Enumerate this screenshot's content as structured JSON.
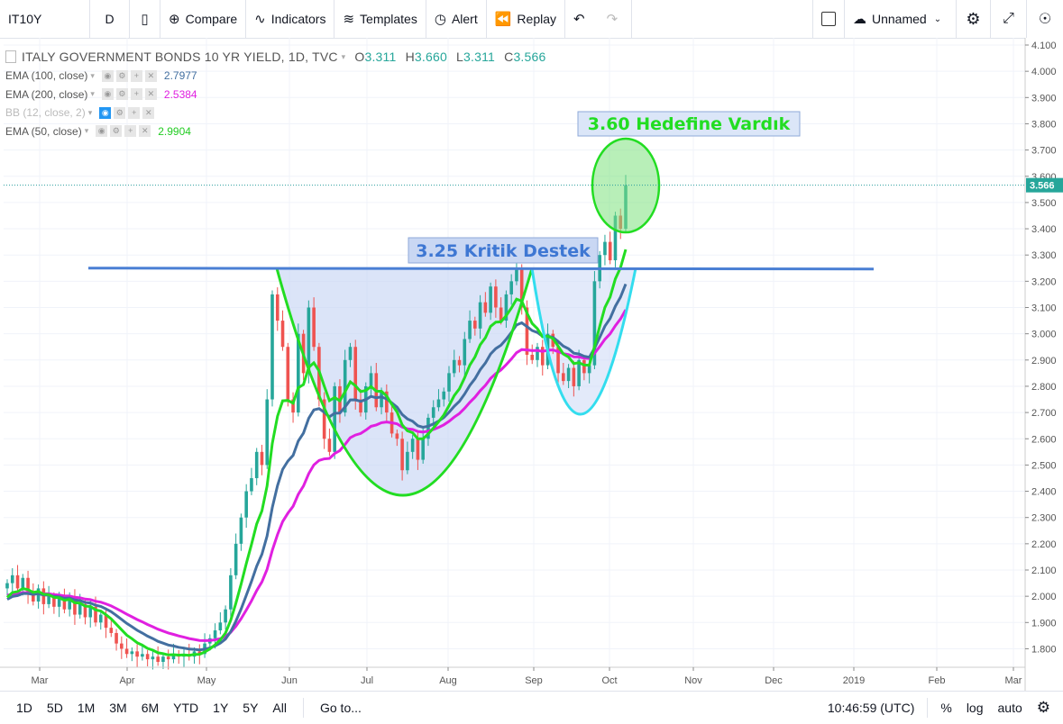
{
  "toolbar": {
    "symbol": "IT10Y",
    "interval": "D",
    "compare": "Compare",
    "indicators": "Indicators",
    "templates": "Templates",
    "alert": "Alert",
    "replay": "Replay",
    "layout_name": "Unnamed"
  },
  "legend": {
    "title": "ITALY GOVERNMENT BONDS 10 YR YIELD, 1D, TVC",
    "open_label": "O",
    "open": "3.311",
    "high_label": "H",
    "high": "3.660",
    "low_label": "L",
    "low": "3.311",
    "close_label": "C",
    "close": "3.566",
    "studies": [
      {
        "name": "EMA (100, close)",
        "value": "2.7977",
        "color": "#436fa0"
      },
      {
        "name": "EMA (200, close)",
        "value": "2.5384",
        "color": "#e020e0"
      },
      {
        "name": "BB (12, close, 2)",
        "value": "",
        "color": "#bbbbbb"
      },
      {
        "name": "EMA (50, close)",
        "value": "2.9904",
        "color": "#22cc22"
      }
    ]
  },
  "annotations": {
    "target": "3.60 Hedefine Vardık",
    "support": "3.25 Kritik Destek"
  },
  "colors": {
    "up": "#26a69a",
    "down": "#ef5350",
    "ema50": "#22dd22",
    "ema100": "#436fa0",
    "ema200": "#e020e0",
    "support": "#4a7fd4",
    "pattern_fill": "#c7d6f5",
    "price_line": "#2a9d9d",
    "price_label_bg": "#26a69a"
  },
  "price_axis": {
    "ticks": [
      "4.100",
      "4.000",
      "3.900",
      "3.800",
      "3.700",
      "3.600",
      "3.500",
      "3.400",
      "3.300",
      "3.200",
      "3.100",
      "3.000",
      "2.900",
      "2.800",
      "2.700",
      "2.600",
      "2.500",
      "2.400",
      "2.300",
      "2.200",
      "2.100",
      "2.000",
      "1.900",
      "1.800"
    ],
    "current_label": "3.566"
  },
  "time_axis": {
    "ticks": [
      "Mar",
      "Apr",
      "May",
      "Jun",
      "Jul",
      "Aug",
      "Sep",
      "Oct",
      "Nov",
      "Dec",
      "2019",
      "Feb",
      "Mar"
    ]
  },
  "bottombar": {
    "ranges": [
      "1D",
      "5D",
      "1M",
      "3M",
      "6M",
      "YTD",
      "1Y",
      "5Y",
      "All"
    ],
    "goto": "Go to...",
    "time": "10:46:59 (UTC)",
    "percent": "%",
    "log": "log",
    "auto": "auto"
  },
  "chart_data": {
    "type": "candlestick",
    "title": "ITALY GOVERNMENT BONDS 10 YR YIELD, 1D, TVC",
    "ylim": [
      1.75,
      4.12
    ],
    "x_ticks": [
      "Mar",
      "Apr",
      "May",
      "Jun",
      "Jul",
      "Aug",
      "Sep",
      "Oct",
      "Nov",
      "Dec",
      "2019",
      "Feb",
      "Mar"
    ],
    "closes": [
      2.05,
      2.08,
      2.03,
      2.07,
      2.01,
      1.98,
      2.03,
      1.97,
      2.0,
      1.96,
      1.99,
      1.95,
      2.0,
      1.93,
      1.97,
      1.92,
      1.96,
      1.9,
      1.93,
      1.88,
      1.86,
      1.82,
      1.8,
      1.78,
      1.79,
      1.77,
      1.78,
      1.76,
      1.77,
      1.75,
      1.77,
      1.76,
      1.78,
      1.77,
      1.78,
      1.77,
      1.79,
      1.78,
      1.82,
      1.84,
      1.87,
      1.9,
      1.95,
      2.08,
      2.2,
      2.3,
      2.4,
      2.45,
      2.55,
      2.5,
      2.75,
      3.15,
      3.05,
      2.95,
      2.75,
      2.7,
      3.0,
      2.85,
      3.1,
      2.95,
      2.75,
      2.6,
      2.55,
      2.8,
      2.7,
      2.9,
      2.95,
      2.75,
      2.7,
      2.8,
      2.85,
      2.72,
      2.78,
      2.7,
      2.62,
      2.6,
      2.48,
      2.55,
      2.6,
      2.52,
      2.6,
      2.68,
      2.72,
      2.75,
      2.78,
      2.85,
      2.9,
      2.88,
      2.98,
      3.05,
      3.02,
      3.12,
      3.08,
      3.18,
      3.1,
      3.05,
      3.15,
      3.2,
      3.25,
      3.1,
      2.92,
      2.9,
      2.95,
      2.88,
      3.0,
      2.95,
      2.85,
      2.82,
      2.87,
      2.8,
      2.9,
      2.85,
      2.88,
      3.2,
      3.3,
      3.35,
      3.28,
      3.45,
      3.4,
      3.566
    ],
    "series": [
      {
        "name": "EMA (50, close)",
        "last": 2.9904
      },
      {
        "name": "EMA (100, close)",
        "last": 2.7977
      },
      {
        "name": "EMA (200, close)",
        "last": 2.5384
      }
    ],
    "support_level": 3.25,
    "target_level": 3.6
  }
}
